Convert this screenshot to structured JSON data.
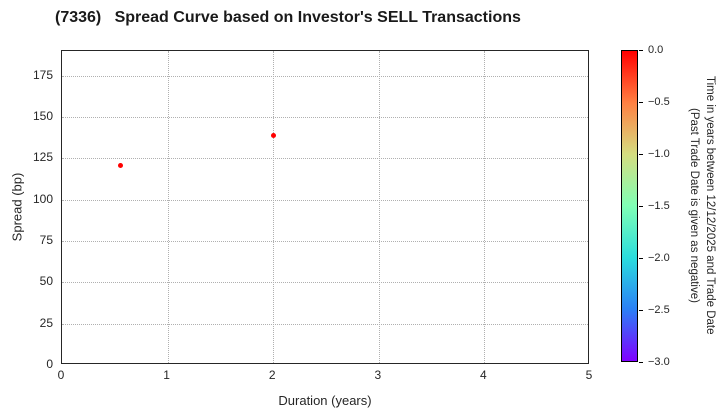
{
  "chart_data": {
    "type": "scatter",
    "title": "(7336)   Spread Curve based on Investor's SELL Transactions",
    "xlabel": "Duration (years)",
    "ylabel": "Spread (bp)",
    "xlim": [
      0,
      5
    ],
    "ylim": [
      0,
      190
    ],
    "x_ticks": [
      0,
      1,
      2,
      3,
      4,
      5
    ],
    "y_ticks": [
      0,
      25,
      50,
      75,
      100,
      125,
      150,
      175
    ],
    "grid": "dotted",
    "legend": "none",
    "points": [
      {
        "x": 0.55,
        "y": 121,
        "time_value": 0.0,
        "color": "#ff0000"
      },
      {
        "x": 2.0,
        "y": 139,
        "time_value": 0.0,
        "color": "#ff0000"
      }
    ],
    "colorbar": {
      "label_line1": "Time in years between 12/12/2025 and Trade Date",
      "label_line2": "(Past Trade Date is given as negative)",
      "tick_labels": [
        "0.0",
        "−0.5",
        "−1.0",
        "−1.5",
        "−2.0",
        "−2.5",
        "−3.0"
      ],
      "range_top": 0.0,
      "range_bottom": -3.0,
      "colormap": "rainbow",
      "gradient_stops": [
        "#ff0000",
        "#ff8042",
        "#d5dd80",
        "#80ffb5",
        "#2bdddd",
        "#2b80f6",
        "#8000ff"
      ]
    }
  }
}
